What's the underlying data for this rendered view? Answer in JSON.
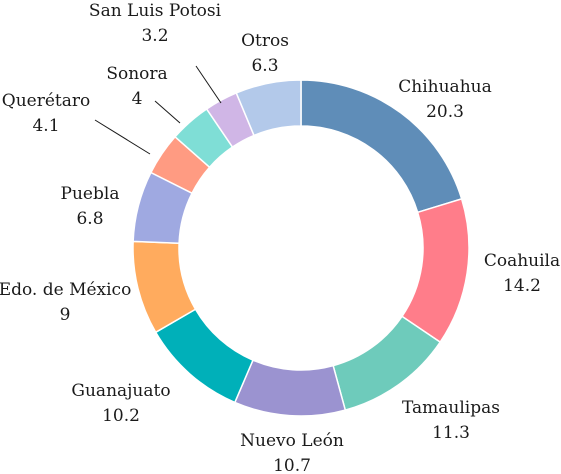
{
  "chart_data": {
    "type": "pie",
    "donut": true,
    "title": "",
    "categories": [
      "Chihuahua",
      "Coahuila",
      "Tamaulipas",
      "Nuevo León",
      "Guanajuato",
      "Edo. de México",
      "Puebla",
      "Querétaro",
      "Sonora",
      "San Luis Potosi",
      "Otros"
    ],
    "values": [
      20.3,
      14.2,
      11.3,
      10.7,
      10.2,
      9,
      6.8,
      4.1,
      4,
      3.2,
      6.3
    ],
    "value_labels": [
      "20.3",
      "14.2",
      "11.3",
      "10.7",
      "10.2",
      "9",
      "6.8",
      "4.1",
      "4",
      "3.2",
      "6.3"
    ],
    "colors": [
      "#5f8db8",
      "#ff7d8a",
      "#6ecbbb",
      "#9b93d0",
      "#00b0b9",
      "#ffab5e",
      "#9fa9e1",
      "#ff9b82",
      "#7fded6",
      "#d0b6e6",
      "#b3c9ea"
    ],
    "legend": "none"
  }
}
